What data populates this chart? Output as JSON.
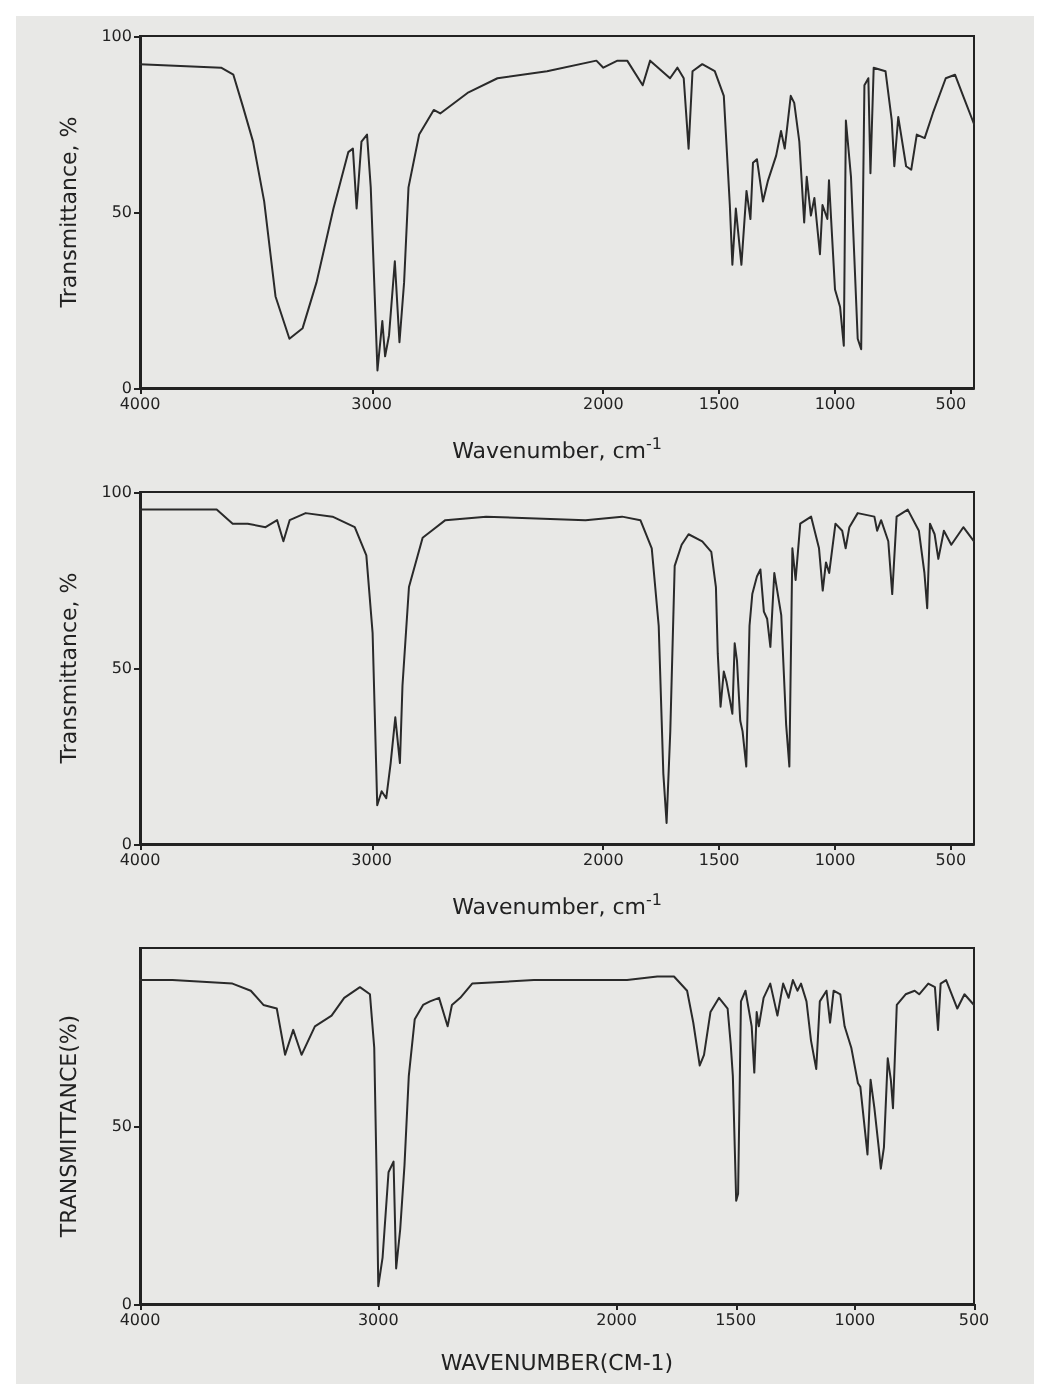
{
  "chart_data": [
    {
      "type": "line",
      "xlabel": "Wavenumber, cm$^{-1}$",
      "ylabel": "Transmittance, %",
      "color": "#2a2a2a",
      "marker": "none",
      "line_style": "solid",
      "xlim": [
        4000,
        400
      ],
      "ylim": [
        0,
        100
      ],
      "xticks": [
        4000,
        3000,
        2000,
        1500,
        1000,
        500
      ],
      "yticks": [
        0,
        50,
        100
      ],
      "x": [
        4000,
        3650,
        3597,
        3556,
        3512,
        3464,
        3415,
        3355,
        3298,
        3238,
        3165,
        3101,
        3081,
        3065,
        3044,
        3020,
        3004,
        2975,
        2954,
        2942,
        2925,
        2900,
        2880,
        2860,
        2841,
        2795,
        2732,
        2704,
        2582,
        2457,
        2243,
        2030,
        2000,
        1939,
        1897,
        1830,
        1798,
        1712,
        1680,
        1653,
        1632,
        1615,
        1573,
        1519,
        1480,
        1454,
        1443,
        1428,
        1404,
        1382,
        1365,
        1354,
        1337,
        1311,
        1289,
        1254,
        1233,
        1217,
        1191,
        1176,
        1154,
        1133,
        1122,
        1104,
        1089,
        1065,
        1054,
        1033,
        1026,
        1000,
        978,
        962,
        953,
        931,
        902,
        887,
        873,
        856,
        847,
        833,
        782,
        755,
        744,
        727,
        693,
        671,
        647,
        613,
        578,
        522,
        482,
        447,
        400
      ],
      "values": [
        92,
        91,
        89,
        80,
        70,
        53,
        26,
        14,
        17,
        30,
        51,
        67,
        68,
        51,
        70,
        72,
        57,
        5,
        19,
        9,
        15,
        36,
        13,
        30,
        57,
        72,
        79,
        78,
        84,
        88,
        90,
        93,
        91,
        93,
        93,
        86,
        93,
        88,
        91,
        88,
        68,
        90,
        92,
        90,
        83,
        52,
        35,
        51,
        35,
        56,
        48,
        64,
        65,
        53,
        59,
        66,
        73,
        68,
        83,
        81,
        70,
        47,
        60,
        49,
        54,
        38,
        52,
        48,
        59,
        28,
        23,
        12,
        76,
        60,
        14,
        11,
        86,
        88,
        61,
        91,
        90,
        76,
        63,
        77,
        63,
        62,
        72,
        71,
        78,
        88,
        89,
        83,
        75
      ]
    },
    {
      "type": "line",
      "xlabel": "Wavenumber, cm$^{-1}$",
      "ylabel": "Transmittance, %",
      "color": "#2a2a2a",
      "marker": "none",
      "line_style": "solid",
      "xlim": [
        4000,
        400
      ],
      "ylim": [
        0,
        100
      ],
      "xticks": [
        4000,
        3000,
        2000,
        1500,
        1000,
        500
      ],
      "yticks": [
        0,
        50,
        100
      ],
      "x": [
        4000,
        3669,
        3600,
        3535,
        3458,
        3408,
        3381,
        3354,
        3285,
        3169,
        3073,
        3023,
        2996,
        2976,
        2957,
        2937,
        2918,
        2898,
        2878,
        2867,
        2839,
        2780,
        2741,
        2682,
        2506,
        2077,
        1919,
        1840,
        1791,
        1761,
        1741,
        1727,
        1711,
        1692,
        1662,
        1632,
        1573,
        1534,
        1514,
        1506,
        1494,
        1480,
        1468,
        1454,
        1443,
        1433,
        1423,
        1409,
        1399,
        1383,
        1369,
        1357,
        1337,
        1322,
        1307,
        1293,
        1279,
        1262,
        1232,
        1211,
        1197,
        1184,
        1170,
        1150,
        1103,
        1069,
        1053,
        1039,
        1025,
        998,
        969,
        954,
        938,
        902,
        830,
        818,
        801,
        770,
        753,
        734,
        686,
        638,
        614,
        602,
        590,
        570,
        554,
        530,
        498,
        446,
        400
      ],
      "values": [
        95,
        95,
        91,
        91,
        90,
        92,
        86,
        92,
        94,
        93,
        90,
        82,
        60,
        11,
        15,
        13,
        23,
        36,
        23,
        45,
        73,
        87,
        89,
        92,
        93,
        92,
        93,
        92,
        84,
        62,
        20,
        6,
        32,
        79,
        85,
        88,
        86,
        83,
        73,
        54,
        39,
        49,
        46,
        41,
        37,
        57,
        52,
        35,
        32,
        22,
        62,
        71,
        76,
        78,
        66,
        64,
        56,
        77,
        65,
        34,
        22,
        84,
        75,
        91,
        93,
        84,
        72,
        80,
        77,
        91,
        89,
        84,
        90,
        94,
        93,
        89,
        92,
        86,
        71,
        93,
        95,
        89,
        77,
        67,
        91,
        88,
        81,
        89,
        85,
        90,
        86
      ]
    },
    {
      "type": "line",
      "xlabel": "WAVENUMBER(CM-1)",
      "ylabel": "TRANSMITTANCE(%)",
      "color": "#2a2a2a",
      "marker": "none",
      "line_style": "solid",
      "xlim": [
        4000,
        500
      ],
      "ylim": [
        0,
        100
      ],
      "xticks": [
        4000,
        3000,
        2000,
        1500,
        1000,
        500
      ],
      "yticks": [
        0,
        50
      ],
      "x": [
        4000,
        3864,
        3612,
        3535,
        3482,
        3426,
        3391,
        3357,
        3322,
        3266,
        3196,
        3143,
        3077,
        3035,
        3017,
        3007,
        3000,
        2982,
        2957,
        2936,
        2925,
        2908,
        2890,
        2872,
        2847,
        2812,
        2783,
        2745,
        2709,
        2691,
        2656,
        2606,
        2347,
        1956,
        1829,
        1759,
        1704,
        1678,
        1651,
        1633,
        1606,
        1570,
        1534,
        1521,
        1512,
        1498,
        1490,
        1478,
        1459,
        1433,
        1422,
        1412,
        1403,
        1383,
        1355,
        1325,
        1301,
        1278,
        1260,
        1241,
        1226,
        1203,
        1184,
        1162,
        1147,
        1119,
        1104,
        1089,
        1061,
        1043,
        1015,
        987,
        977,
        947,
        934,
        918,
        900,
        891,
        878,
        862,
        849,
        840,
        824,
        787,
        749,
        730,
        692,
        664,
        651,
        640,
        617,
        570,
        540,
        500
      ],
      "values": [
        91,
        91,
        90,
        88,
        84,
        83,
        70,
        77,
        70,
        78,
        81,
        86,
        89,
        87,
        72,
        36,
        5,
        13,
        37,
        40,
        10,
        21,
        39,
        64,
        80,
        84,
        85,
        86,
        78,
        84,
        86,
        90,
        91,
        91,
        92,
        92,
        88,
        79,
        67,
        70,
        82,
        86,
        83,
        73,
        64,
        29,
        31,
        85,
        88,
        78,
        65,
        82,
        78,
        86,
        90,
        81,
        90,
        86,
        91,
        88,
        90,
        85,
        74,
        66,
        85,
        88,
        79,
        88,
        87,
        78,
        72,
        62,
        61,
        42,
        63,
        55,
        44,
        38,
        44,
        69,
        63,
        55,
        84,
        87,
        88,
        87,
        90,
        89,
        77,
        90,
        91,
        83,
        87,
        84
      ]
    }
  ]
}
